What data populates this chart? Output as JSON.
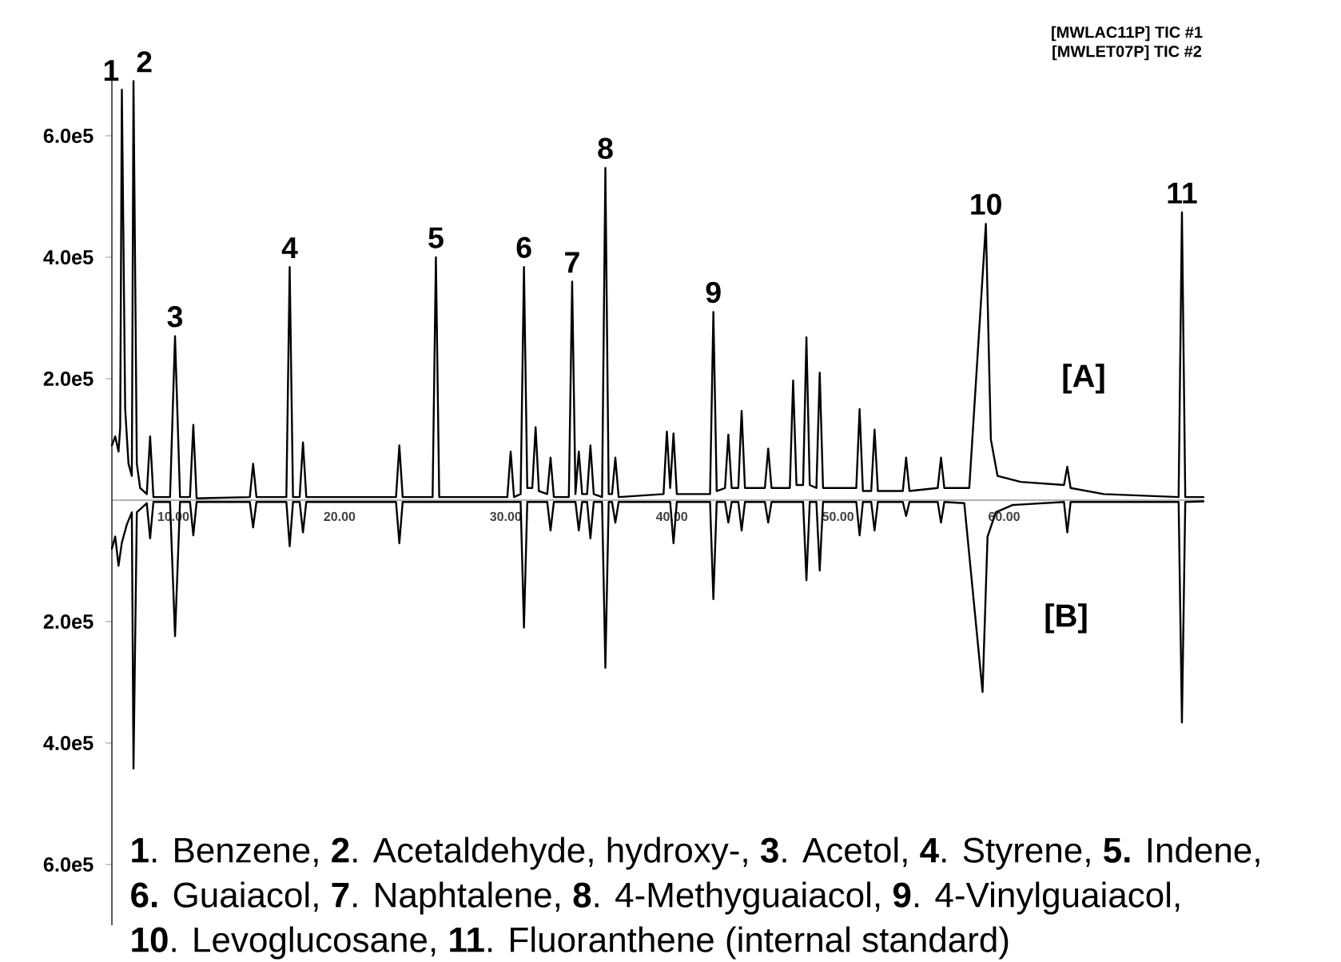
{
  "chart_data": {
    "type": "line",
    "xlim": [
      6.3,
      72
    ],
    "ylim": [
      -700000,
      700000
    ],
    "xticks": [
      {
        "value": 10,
        "label": "10.00"
      },
      {
        "value": 20,
        "label": "20.00"
      },
      {
        "value": 30,
        "label": "30.00"
      },
      {
        "value": 40,
        "label": "40.00"
      },
      {
        "value": 50,
        "label": "50.00"
      },
      {
        "value": 60,
        "label": "60.00"
      }
    ],
    "yticks": [
      {
        "value": -600000,
        "label": "6.0e5"
      },
      {
        "value": -400000,
        "label": "4.0e5"
      },
      {
        "value": -200000,
        "label": "2.0e5"
      },
      {
        "value": 200000,
        "label": "2.0e5"
      },
      {
        "value": 400000,
        "label": "4.0e5"
      },
      {
        "value": 600000,
        "label": "6.0e5"
      }
    ],
    "series": [
      {
        "color": "#000000",
        "x": [
          6.3,
          6.5,
          6.7,
          6.8,
          6.9,
          7.1,
          7.3,
          7.5,
          7.6,
          7.8,
          8.0,
          8.4,
          8.6,
          8.8,
          9.8,
          10.1,
          10.4,
          11.0,
          11.2,
          11.4,
          14.6,
          14.8,
          15.0,
          16.8,
          17.0,
          17.2,
          17.6,
          17.8,
          18.0,
          23.4,
          23.6,
          23.8,
          25.6,
          25.8,
          26.0,
          30.1,
          30.3,
          30.5,
          30.9,
          31.1,
          31.3,
          31.6,
          31.8,
          32.0,
          32.5,
          32.7,
          32.9,
          33.8,
          34.0,
          34.2,
          34.4,
          34.6,
          34.9,
          35.1,
          35.3,
          35.8,
          36.0,
          36.2,
          36.4,
          36.6,
          36.8,
          39.5,
          39.7,
          39.9,
          40.1,
          40.3,
          42.3,
          42.5,
          42.7,
          43.2,
          43.4,
          43.6,
          44.0,
          44.2,
          44.4,
          45.6,
          45.8,
          46.0,
          47.1,
          47.3,
          47.5,
          47.9,
          48.1,
          48.3,
          48.7,
          48.9,
          49.1,
          51.1,
          51.3,
          51.5,
          52.0,
          52.2,
          52.4,
          53.9,
          54.1,
          54.3,
          56.0,
          56.2,
          56.4,
          57.9,
          58.9,
          59.2,
          59.6,
          61,
          63.6,
          63.8,
          64.0,
          66,
          70.5,
          70.7,
          70.9,
          72
        ],
        "values": [
          90000,
          105000,
          80000,
          120000,
          676000,
          150000,
          60000,
          40000,
          690000,
          60000,
          20000,
          10000,
          105000,
          5000,
          5000,
          270000,
          5000,
          5000,
          124000,
          3000,
          5000,
          60000,
          5000,
          5000,
          384000,
          5000,
          5000,
          95000,
          5000,
          5000,
          90000,
          5000,
          5000,
          400000,
          5000,
          5000,
          80000,
          5000,
          10000,
          384000,
          20000,
          20000,
          120000,
          15000,
          10000,
          70000,
          5000,
          5000,
          360000,
          10000,
          80000,
          10000,
          10000,
          90000,
          10000,
          5000,
          547000,
          10000,
          10000,
          70000,
          5000,
          10000,
          113000,
          20000,
          110000,
          10000,
          10000,
          310000,
          15000,
          20000,
          108000,
          20000,
          20000,
          147000,
          20000,
          20000,
          85000,
          20000,
          20000,
          197000,
          25000,
          25000,
          268000,
          25000,
          20000,
          210000,
          20000,
          20000,
          150000,
          15000,
          15000,
          116000,
          15000,
          15000,
          70000,
          15000,
          20000,
          70000,
          20000,
          20000,
          455000,
          100000,
          40000,
          30000,
          25000,
          55000,
          20000,
          10000,
          5000,
          474000,
          5000,
          5000
        ]
      },
      {
        "color": "#000000",
        "x": [
          6.3,
          6.5,
          6.7,
          6.9,
          7.2,
          7.5,
          7.6,
          7.8,
          8.4,
          8.6,
          8.8,
          9.8,
          10.1,
          10.4,
          11.0,
          11.2,
          11.4,
          14.6,
          14.8,
          15.0,
          16.8,
          17.0,
          17.2,
          17.6,
          17.8,
          18.0,
          23.4,
          23.6,
          23.8,
          30.9,
          31.1,
          31.3,
          32.5,
          32.7,
          32.9,
          34.2,
          34.4,
          34.6,
          34.9,
          35.1,
          35.3,
          35.8,
          36.0,
          36.2,
          36.4,
          36.6,
          36.8,
          39.9,
          40.1,
          40.3,
          42.3,
          42.5,
          42.7,
          43.2,
          43.4,
          43.6,
          44.0,
          44.2,
          44.4,
          45.6,
          45.8,
          46.0,
          47.9,
          48.1,
          48.3,
          48.7,
          48.9,
          49.1,
          51.1,
          51.3,
          51.5,
          52.0,
          52.2,
          52.4,
          53.9,
          54.1,
          54.3,
          56.0,
          56.2,
          56.4,
          57.6,
          58.7,
          59.0,
          59.5,
          60.5,
          63.6,
          63.8,
          64.0,
          70.5,
          70.7,
          70.9,
          72
        ],
        "values": [
          -80000,
          -60000,
          -108000,
          -70000,
          -40000,
          -20000,
          -442000,
          -20000,
          -5000,
          -63000,
          -3000,
          -3000,
          -224000,
          -3000,
          -3000,
          -58000,
          -3000,
          -3000,
          -45000,
          -3000,
          -3000,
          -76000,
          -3000,
          -3000,
          -53000,
          -3000,
          -3000,
          -71000,
          -3000,
          -3000,
          -210000,
          -3000,
          -3000,
          -50000,
          -3000,
          -3000,
          -50000,
          -3000,
          -3000,
          -63000,
          -3000,
          -3000,
          -276000,
          -3000,
          -3000,
          -37000,
          -3000,
          -3000,
          -71000,
          -3000,
          -3000,
          -163000,
          -3000,
          -3000,
          -37000,
          -3000,
          -3000,
          -50000,
          -3000,
          -3000,
          -37000,
          -3000,
          -3000,
          -132000,
          -3000,
          -3000,
          -116000,
          -3000,
          -3000,
          -58000,
          -3000,
          -3000,
          -50000,
          -3000,
          -3000,
          -26000,
          -3000,
          -3000,
          -37000,
          -3000,
          -5000,
          -316000,
          -60000,
          -20000,
          -8000,
          -3000,
          -53000,
          -3000,
          -3000,
          -366000,
          -3000,
          -2000
        ]
      }
    ],
    "annotations": [
      {
        "text": "1",
        "x": 6.9,
        "y": 676000
      },
      {
        "text": "2",
        "x": 7.6,
        "y": 690000
      },
      {
        "text": "3",
        "x": 10.1,
        "y": 270000
      },
      {
        "text": "4",
        "x": 17.0,
        "y": 384000
      },
      {
        "text": "5",
        "x": 25.8,
        "y": 400000
      },
      {
        "text": "6",
        "x": 31.1,
        "y": 384000
      },
      {
        "text": "7",
        "x": 34.0,
        "y": 360000
      },
      {
        "text": "8",
        "x": 36.0,
        "y": 547000
      },
      {
        "text": "9",
        "x": 42.5,
        "y": 310000
      },
      {
        "text": "10",
        "x": 58.9,
        "y": 455000
      },
      {
        "text": "11",
        "x": 70.7,
        "y": 474000
      },
      "[A]",
      "[B]",
      "[MWLAC11P] TIC #1",
      "[MWLET07P] TIC #2",
      "**1**. Benzene, **2**. Acetaldehyde, hydroxy-, **3**. Acetol, **4**. Styrene, **5.** Indene,",
      "**6.** Guaiacol, **7**. Naphtalene, **8**. 4-Methyguaiacol, **9**. 4-Vinylguaiacol,",
      "**10**. Levoglucosane, **11**. Fluoranthene (internal standard)"
    ]
  }
}
